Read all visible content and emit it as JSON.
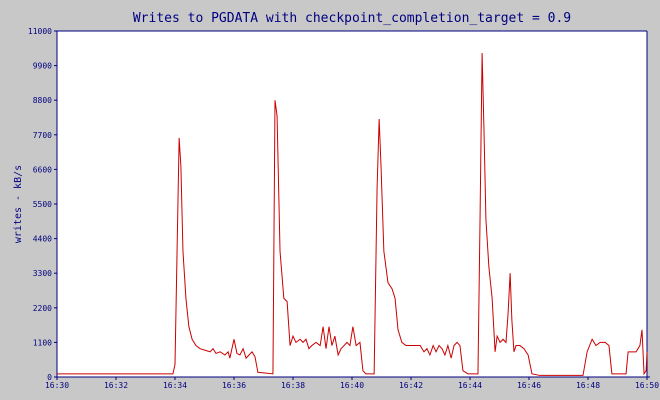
{
  "chart_data": {
    "type": "line",
    "title": "Writes to PGDATA with checkpoint_completion_target = 0.9",
    "y_label": "writes - kB/s",
    "xlim": [
      990,
      1010
    ],
    "xticks": [
      {
        "value": 990,
        "label": "16:30"
      },
      {
        "value": 992,
        "label": "16:32"
      },
      {
        "value": 994,
        "label": "16:34"
      },
      {
        "value": 996,
        "label": "16:36"
      },
      {
        "value": 998,
        "label": "16:38"
      },
      {
        "value": 1000,
        "label": "16:40"
      },
      {
        "value": 1002,
        "label": "16:42"
      },
      {
        "value": 1004,
        "label": "16:44"
      },
      {
        "value": 1006,
        "label": "16:46"
      },
      {
        "value": 1008,
        "label": "16:48"
      },
      {
        "value": 1010,
        "label": "16:50"
      }
    ],
    "ylim": [
      0,
      11000
    ],
    "yticks": [
      0,
      1100,
      2200,
      3300,
      4400,
      5500,
      6600,
      7700,
      8800,
      9900,
      11000
    ],
    "x": [
      990.0,
      993.93,
      994.0,
      994.14,
      994.2,
      994.27,
      994.37,
      994.47,
      994.58,
      994.71,
      994.85,
      995.02,
      995.19,
      995.29,
      995.39,
      995.53,
      995.69,
      995.8,
      995.86,
      996.0,
      996.1,
      996.2,
      996.31,
      996.41,
      996.51,
      996.61,
      996.71,
      996.81,
      997.32,
      997.39,
      997.46,
      997.56,
      997.69,
      997.8,
      997.9,
      998.0,
      998.1,
      998.24,
      998.34,
      998.44,
      998.54,
      998.64,
      998.78,
      998.92,
      999.02,
      999.12,
      999.22,
      999.32,
      999.42,
      999.53,
      999.63,
      999.73,
      999.83,
      999.93,
      1000.03,
      1000.14,
      1000.27,
      1000.37,
      1000.47,
      1000.75,
      1000.85,
      1000.92,
      1000.98,
      1001.08,
      1001.22,
      1001.36,
      1001.46,
      1001.56,
      1001.69,
      1001.83,
      1001.97,
      1002.14,
      1002.31,
      1002.44,
      1002.54,
      1002.64,
      1002.75,
      1002.85,
      1002.95,
      1003.05,
      1003.15,
      1003.25,
      1003.36,
      1003.46,
      1003.56,
      1003.66,
      1003.76,
      1003.93,
      1004.27,
      1004.34,
      1004.41,
      1004.47,
      1004.54,
      1004.64,
      1004.75,
      1004.85,
      1004.92,
      1005.02,
      1005.12,
      1005.22,
      1005.29,
      1005.36,
      1005.42,
      1005.49,
      1005.56,
      1005.69,
      1005.83,
      1005.97,
      1006.1,
      1006.37,
      1007.83,
      1007.97,
      1008.14,
      1008.27,
      1008.41,
      1008.58,
      1008.71,
      1008.81,
      1009.29,
      1009.36,
      1009.63,
      1009.76,
      1009.83,
      1009.9,
      1009.97,
      1010.0
    ],
    "series": [
      {
        "color": "#cc0000",
        "values": [
          100,
          100,
          400,
          7600,
          6700,
          4000,
          2500,
          1600,
          1200,
          1000,
          900,
          850,
          800,
          900,
          750,
          800,
          700,
          800,
          600,
          1200,
          750,
          700,
          900,
          600,
          700,
          800,
          650,
          150,
          100,
          8800,
          8300,
          4000,
          2500,
          2400,
          1000,
          1300,
          1100,
          1200,
          1100,
          1200,
          900,
          1000,
          1100,
          1000,
          1600,
          900,
          1600,
          1000,
          1300,
          700,
          900,
          1000,
          1100,
          1000,
          1600,
          1000,
          1100,
          200,
          100,
          100,
          6000,
          8200,
          6800,
          4000,
          3000,
          2800,
          2500,
          1500,
          1100,
          1000,
          1000,
          1000,
          1000,
          800,
          900,
          700,
          1000,
          800,
          1000,
          900,
          700,
          1000,
          600,
          1000,
          1100,
          1000,
          200,
          100,
          100,
          5000,
          10300,
          8000,
          5000,
          3500,
          2500,
          800,
          1300,
          1100,
          1200,
          1100,
          2000,
          3300,
          1800,
          800,
          1000,
          1000,
          900,
          700,
          100,
          50,
          50,
          800,
          1200,
          1000,
          1100,
          1100,
          1000,
          100,
          100,
          800,
          800,
          1000,
          1500,
          100,
          200,
          800
        ]
      }
    ]
  }
}
